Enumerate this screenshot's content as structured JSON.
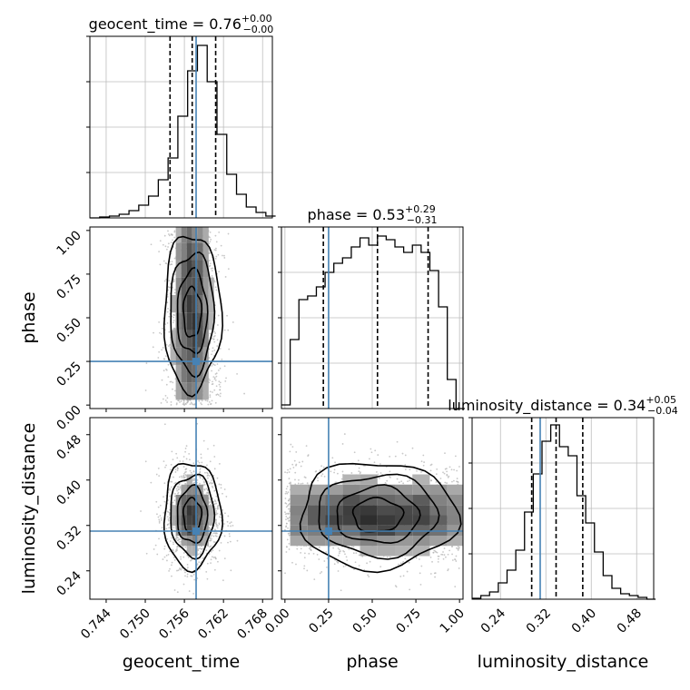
{
  "chart_data": {
    "type": "corner",
    "parameters": [
      {
        "name": "geocent_time",
        "tick_labels": [
          "0.744",
          "0.750",
          "0.756",
          "0.762",
          "0.768"
        ],
        "ticks": [
          0.744,
          0.75,
          0.756,
          0.762,
          0.768
        ],
        "range": [
          0.7415,
          0.7695
        ]
      },
      {
        "name": "phase",
        "tick_labels": [
          "0.00",
          "0.25",
          "0.50",
          "0.75",
          "1.00"
        ],
        "ticks": [
          0.0,
          0.25,
          0.5,
          0.75,
          1.0
        ],
        "range": [
          -0.02,
          1.02
        ]
      },
      {
        "name": "luminosity_distance",
        "tick_labels": [
          "0.24",
          "0.32",
          "0.40",
          "0.48"
        ],
        "ticks": [
          0.24,
          0.32,
          0.4,
          0.48
        ],
        "range": [
          0.19,
          0.51
        ]
      }
    ],
    "titles": [
      {
        "base": "geocent_time = 0.76",
        "sup": "+0.00",
        "sub": "−0.00"
      },
      {
        "base": "phase = 0.53",
        "sup": "+0.29",
        "sub": "−0.31"
      },
      {
        "base": "luminosity_distance = 0.34",
        "sup": "+0.05",
        "sub": "−0.04"
      }
    ],
    "truths": [
      0.7578,
      0.25,
      0.31
    ],
    "quantiles": [
      [
        0.7538,
        0.7572,
        0.7608
      ],
      [
        0.22,
        0.53,
        0.82
      ],
      [
        0.295,
        0.338,
        0.385
      ]
    ],
    "histograms": [
      {
        "param": "geocent_time",
        "ylim": [
          0,
          1.0
        ],
        "x": [
          0.7415,
          0.743,
          0.7445,
          0.746,
          0.7475,
          0.749,
          0.7505,
          0.752,
          0.7535,
          0.755,
          0.7565,
          0.758,
          0.7595,
          0.761,
          0.7625,
          0.764,
          0.7655,
          0.767,
          0.7685
        ],
        "values": [
          0.0,
          0.005,
          0.01,
          0.02,
          0.04,
          0.07,
          0.12,
          0.21,
          0.33,
          0.56,
          0.81,
          0.95,
          0.75,
          0.46,
          0.24,
          0.13,
          0.06,
          0.03,
          0.01
        ]
      },
      {
        "param": "phase",
        "ylim": [
          0,
          1.0
        ],
        "x": [
          -0.02,
          0.03,
          0.08,
          0.13,
          0.18,
          0.23,
          0.28,
          0.33,
          0.38,
          0.43,
          0.48,
          0.53,
          0.58,
          0.63,
          0.68,
          0.73,
          0.78,
          0.83,
          0.88,
          0.93,
          0.98
        ],
        "values": [
          0.02,
          0.38,
          0.6,
          0.62,
          0.67,
          0.75,
          0.8,
          0.83,
          0.89,
          0.94,
          0.9,
          0.95,
          0.93,
          0.89,
          0.86,
          0.9,
          0.86,
          0.76,
          0.56,
          0.16,
          0.0
        ]
      },
      {
        "param": "luminosity_distance",
        "ylim": [
          0,
          1.0
        ],
        "x": [
          0.19,
          0.2054,
          0.2208,
          0.2362,
          0.2516,
          0.267,
          0.2824,
          0.2978,
          0.3132,
          0.3286,
          0.344,
          0.3594,
          0.3748,
          0.3902,
          0.4056,
          0.421,
          0.4364,
          0.4518,
          0.4672,
          0.4826,
          0.498
        ],
        "values": [
          0.005,
          0.02,
          0.04,
          0.09,
          0.16,
          0.27,
          0.48,
          0.69,
          0.87,
          0.96,
          0.84,
          0.79,
          0.57,
          0.42,
          0.26,
          0.13,
          0.06,
          0.03,
          0.02,
          0.01,
          0.0
        ]
      }
    ],
    "joint": [
      {
        "x": "geocent_time",
        "y": "phase",
        "center": [
          0.7572,
          0.53
        ],
        "spread": [
          0.0021,
          0.28
        ]
      },
      {
        "x": "geocent_time",
        "y": "luminosity_distance",
        "center": [
          0.7572,
          0.338
        ],
        "spread": [
          0.0021,
          0.045
        ]
      },
      {
        "x": "phase",
        "y": "luminosity_distance",
        "center": [
          0.53,
          0.338
        ],
        "spread": [
          0.28,
          0.045
        ]
      }
    ],
    "colors": {
      "truth": "#4682b4",
      "hist": "#000000",
      "grid": "#bdbdbd",
      "points": "#b0b0b0"
    }
  }
}
